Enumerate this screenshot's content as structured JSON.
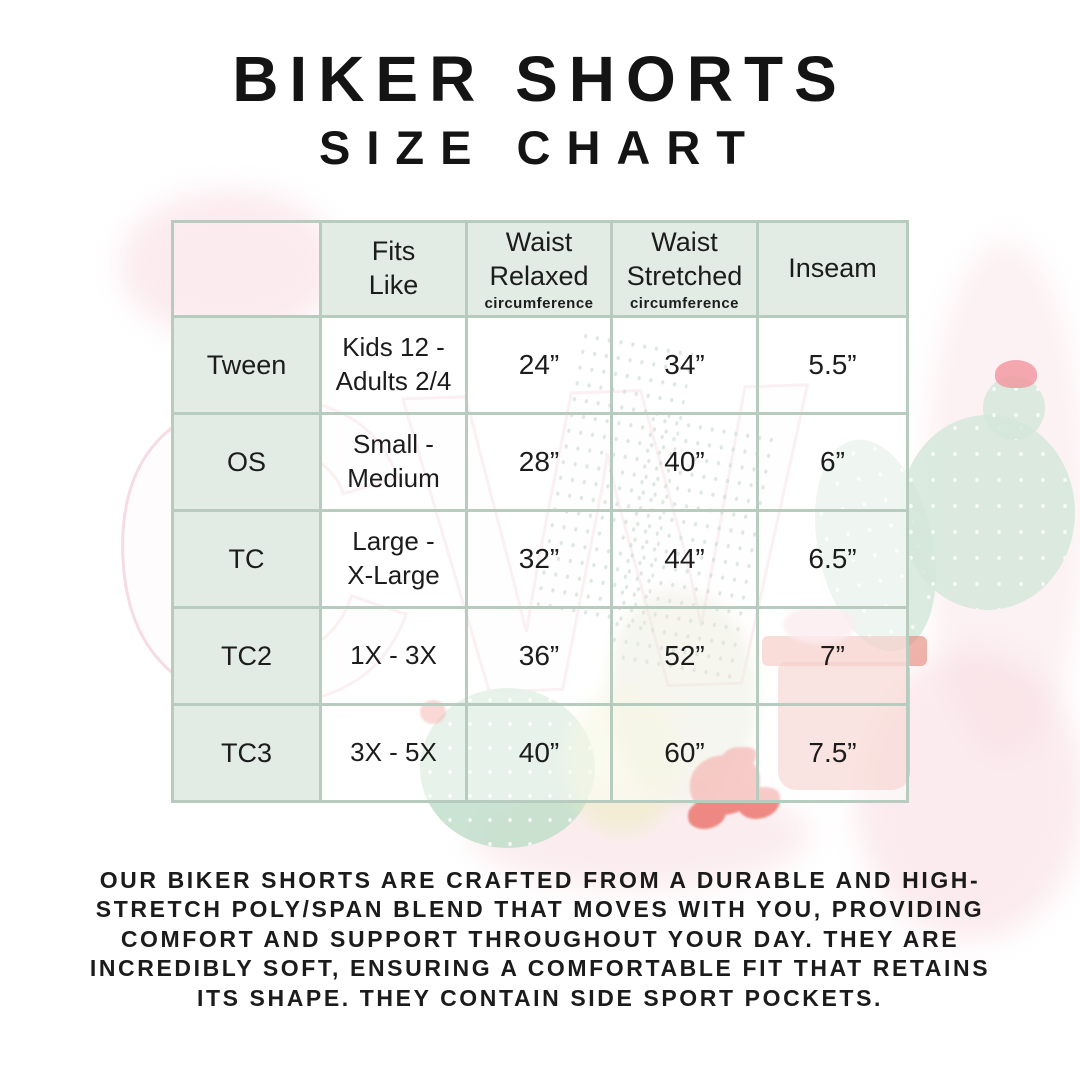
{
  "page": {
    "title_line1": "BIKER SHORTS",
    "title_line2": "SIZE CHART",
    "description": "OUR BIKER SHORTS ARE CRAFTED FROM A DURABLE AND HIGH-STRETCH POLY/SPAN BLEND THAT MOVES WITH YOU, PROVIDING COMFORT AND SUPPORT THROUGHOUT YOUR DAY. THEY ARE INCREDIBLY SOFT, ENSURING A COMFORTABLE FIT THAT RETAINS ITS SHAPE. THEY CONTAIN SIDE SPORT POCKETS."
  },
  "watermark": {
    "text": "CW"
  },
  "size_chart": {
    "columns": [
      {
        "title": "Fits\nLike",
        "sub": ""
      },
      {
        "title": "Waist\nRelaxed",
        "sub": "circumference"
      },
      {
        "title": "Waist\nStretched",
        "sub": "circumference"
      },
      {
        "title": "Inseam",
        "sub": ""
      }
    ],
    "rows": [
      {
        "label": "Tween",
        "fits_like": "Kids 12 -\nAdults 2/4",
        "waist_relaxed": "24”",
        "waist_stretched": "34”",
        "inseam": "5.5”"
      },
      {
        "label": "OS",
        "fits_like": "Small -\nMedium",
        "waist_relaxed": "28”",
        "waist_stretched": "40”",
        "inseam": "6”"
      },
      {
        "label": "TC",
        "fits_like": "Large -\nX-Large",
        "waist_relaxed": "32”",
        "waist_stretched": "44”",
        "inseam": "6.5”"
      },
      {
        "label": "TC2",
        "fits_like": "1X - 3X",
        "waist_relaxed": "36”",
        "waist_stretched": "52”",
        "inseam": "7”"
      },
      {
        "label": "TC3",
        "fits_like": "3X - 5X",
        "waist_relaxed": "40”",
        "waist_stretched": "60”",
        "inseam": "7.5”"
      }
    ]
  },
  "colors": {
    "table_border": "#b7ccbf",
    "header_cell_fill": "#e2ebe4",
    "data_cell_fill": "rgba(255,255,255,0.55)",
    "text": "#1c1c1c",
    "watermark_pink": "#f2d2da",
    "cactus_green": "#d5e7da",
    "pot_coral": "#e9968a",
    "flower_red": "#e9625a",
    "flower_pink": "#f29aa2"
  }
}
